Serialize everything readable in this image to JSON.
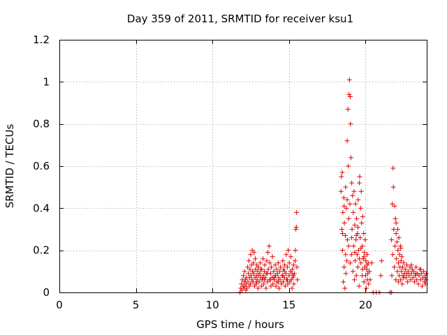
{
  "chart_data": {
    "type": "scatter",
    "title": "Day 359 of 2011, SRMTID for receiver ksu1",
    "xlabel": "GPS time / hours",
    "ylabel": "SRMTID / TECUs",
    "xlim": [
      0,
      24
    ],
    "ylim": [
      0,
      1.2
    ],
    "xticks": [
      0,
      5,
      10,
      15,
      20
    ],
    "xtick_labels": [
      "0",
      "5",
      "10",
      "15",
      "20"
    ],
    "yticks": [
      0,
      0.2,
      0.4,
      0.6,
      0.8,
      1,
      1.2
    ],
    "ytick_labels": [
      "0",
      "0.2",
      "0.4",
      "0.6",
      "0.8",
      "1",
      "1.2"
    ],
    "grid": true,
    "marker": "+",
    "color": "#e00000",
    "series": [
      {
        "name": "SRMTID",
        "points": [
          [
            11.8,
            0.0
          ],
          [
            11.85,
            0.02
          ],
          [
            11.9,
            0.04
          ],
          [
            11.92,
            0.01
          ],
          [
            11.95,
            0.06
          ],
          [
            12.0,
            0.03
          ],
          [
            12.02,
            0.08
          ],
          [
            12.05,
            0.02
          ],
          [
            12.08,
            0.05
          ],
          [
            12.1,
            0.1
          ],
          [
            12.12,
            0.03
          ],
          [
            12.15,
            0.06
          ],
          [
            12.18,
            0.01
          ],
          [
            12.2,
            0.04
          ],
          [
            12.22,
            0.07
          ],
          [
            12.25,
            0.02
          ],
          [
            12.3,
            0.12
          ],
          [
            12.32,
            0.05
          ],
          [
            12.35,
            0.09
          ],
          [
            12.38,
            0.15
          ],
          [
            12.4,
            0.03
          ],
          [
            12.42,
            0.07
          ],
          [
            12.45,
            0.11
          ],
          [
            12.48,
            0.04
          ],
          [
            12.5,
            0.18
          ],
          [
            12.52,
            0.08
          ],
          [
            12.55,
            0.13
          ],
          [
            12.58,
            0.06
          ],
          [
            12.6,
            0.2
          ],
          [
            12.62,
            0.1
          ],
          [
            12.65,
            0.05
          ],
          [
            12.68,
            0.14
          ],
          [
            12.7,
            0.09
          ],
          [
            12.72,
            0.19
          ],
          [
            12.75,
            0.03
          ],
          [
            12.78,
            0.07
          ],
          [
            12.8,
            0.16
          ],
          [
            12.82,
            0.11
          ],
          [
            12.85,
            0.04
          ],
          [
            12.88,
            0.08
          ],
          [
            12.9,
            0.13
          ],
          [
            12.92,
            0.06
          ],
          [
            12.95,
            0.1
          ],
          [
            12.98,
            0.02
          ],
          [
            13.0,
            0.12
          ],
          [
            13.05,
            0.05
          ],
          [
            13.1,
            0.09
          ],
          [
            13.12,
            0.14
          ],
          [
            13.15,
            0.07
          ],
          [
            13.2,
            0.03
          ],
          [
            13.22,
            0.11
          ],
          [
            13.25,
            0.06
          ],
          [
            13.3,
            0.16
          ],
          [
            13.32,
            0.08
          ],
          [
            13.35,
            0.04
          ],
          [
            13.4,
            0.1
          ],
          [
            13.42,
            0.13
          ],
          [
            13.45,
            0.07
          ],
          [
            13.5,
            0.02
          ],
          [
            13.52,
            0.09
          ],
          [
            13.55,
            0.15
          ],
          [
            13.6,
            0.05
          ],
          [
            13.62,
            0.19
          ],
          [
            13.65,
            0.11
          ],
          [
            13.7,
            0.22
          ],
          [
            13.72,
            0.06
          ],
          [
            13.75,
            0.14
          ],
          [
            13.8,
            0.09
          ],
          [
            13.82,
            0.03
          ],
          [
            13.85,
            0.12
          ],
          [
            13.9,
            0.07
          ],
          [
            13.92,
            0.17
          ],
          [
            13.95,
            0.04
          ],
          [
            14.0,
            0.1
          ],
          [
            14.05,
            0.06
          ],
          [
            14.1,
            0.13
          ],
          [
            14.12,
            0.08
          ],
          [
            14.15,
            0.03
          ],
          [
            14.2,
            0.11
          ],
          [
            14.22,
            0.05
          ],
          [
            14.25,
            0.09
          ],
          [
            14.3,
            0.14
          ],
          [
            14.32,
            0.07
          ],
          [
            14.35,
            0.02
          ],
          [
            14.4,
            0.1
          ],
          [
            14.42,
            0.06
          ],
          [
            14.45,
            0.12
          ],
          [
            14.5,
            0.04
          ],
          [
            14.55,
            0.08
          ],
          [
            14.6,
            0.15
          ],
          [
            14.62,
            0.05
          ],
          [
            14.65,
            0.11
          ],
          [
            14.7,
            0.07
          ],
          [
            14.72,
            0.13
          ],
          [
            14.75,
            0.03
          ],
          [
            14.8,
            0.09
          ],
          [
            14.82,
            0.18
          ],
          [
            14.85,
            0.06
          ],
          [
            14.9,
            0.12
          ],
          [
            14.92,
            0.04
          ],
          [
            14.95,
            0.2
          ],
          [
            15.0,
            0.08
          ],
          [
            15.02,
            0.14
          ],
          [
            15.05,
            0.05
          ],
          [
            15.1,
            0.1
          ],
          [
            15.12,
            0.17
          ],
          [
            15.15,
            0.06
          ],
          [
            15.2,
            0.02
          ],
          [
            15.22,
            0.11
          ],
          [
            15.25,
            0.07
          ],
          [
            15.3,
            0.13
          ],
          [
            15.32,
            0.04
          ],
          [
            15.35,
            0.09
          ],
          [
            15.4,
            0.15
          ],
          [
            15.42,
            0.2
          ],
          [
            15.45,
            0.3
          ],
          [
            15.48,
            0.31
          ],
          [
            15.5,
            0.38
          ],
          [
            15.52,
            0.12
          ],
          [
            15.55,
            0.06
          ],
          [
            13.0,
            0.08
          ],
          [
            13.15,
            0.11
          ],
          [
            13.4,
            0.06
          ],
          [
            13.6,
            0.09
          ],
          [
            14.0,
            0.07
          ],
          [
            14.3,
            0.05
          ],
          [
            14.6,
            0.08
          ],
          [
            14.9,
            0.06
          ],
          [
            15.2,
            0.09
          ],
          [
            12.9,
            0.05
          ],
          [
            13.3,
            0.07
          ],
          [
            14.1,
            0.08
          ],
          [
            14.7,
            0.1
          ],
          [
            15.3,
            0.08
          ],
          [
            13.8,
            0.06
          ],
          [
            18.4,
            0.48
          ],
          [
            18.42,
            0.55
          ],
          [
            18.45,
            0.3
          ],
          [
            18.48,
            0.57
          ],
          [
            18.5,
            0.2
          ],
          [
            18.52,
            0.38
          ],
          [
            18.55,
            0.05
          ],
          [
            18.58,
            0.45
          ],
          [
            18.6,
            0.12
          ],
          [
            18.62,
            0.33
          ],
          [
            18.65,
            0.02
          ],
          [
            18.68,
            0.27
          ],
          [
            18.7,
            0.5
          ],
          [
            18.72,
            0.09
          ],
          [
            18.75,
            0.4
          ],
          [
            18.78,
            0.15
          ],
          [
            18.8,
            0.72
          ],
          [
            18.82,
            0.25
          ],
          [
            18.85,
            0.87
          ],
          [
            18.88,
            0.6
          ],
          [
            18.9,
            0.35
          ],
          [
            18.92,
            0.94
          ],
          [
            18.95,
            1.01
          ],
          [
            18.98,
            0.42
          ],
          [
            19.0,
            0.93
          ],
          [
            19.02,
            0.8
          ],
          [
            19.05,
            0.64
          ],
          [
            19.08,
            0.18
          ],
          [
            19.1,
            0.52
          ],
          [
            19.12,
            0.3
          ],
          [
            19.15,
            0.46
          ],
          [
            19.18,
            0.1
          ],
          [
            19.2,
            0.38
          ],
          [
            19.22,
            0.22
          ],
          [
            19.25,
            0.48
          ],
          [
            19.28,
            0.06
          ],
          [
            19.3,
            0.32
          ],
          [
            19.32,
            0.15
          ],
          [
            19.35,
            0.42
          ],
          [
            19.38,
            0.25
          ],
          [
            19.4,
            0.08
          ],
          [
            19.42,
            0.35
          ],
          [
            19.45,
            0.18
          ],
          [
            19.48,
            0.28
          ],
          [
            19.5,
            0.12
          ],
          [
            19.52,
            0.44
          ],
          [
            19.55,
            0.2
          ],
          [
            19.58,
            0.03
          ],
          [
            19.6,
            0.52
          ],
          [
            19.62,
            0.55
          ],
          [
            19.65,
            0.26
          ],
          [
            19.68,
            0.4
          ],
          [
            19.7,
            0.14
          ],
          [
            19.72,
            0.48
          ],
          [
            19.75,
            0.33
          ],
          [
            19.78,
            0.08
          ],
          [
            19.8,
            0.22
          ],
          [
            19.82,
            0.36
          ],
          [
            19.85,
            0.16
          ],
          [
            19.88,
            0.28
          ],
          [
            19.9,
            0.05
          ],
          [
            19.92,
            0.19
          ],
          [
            19.95,
            0.12
          ],
          [
            19.98,
            0.25
          ],
          [
            20.0,
            0.08
          ],
          [
            20.02,
            0.15
          ],
          [
            20.05,
            0.02
          ],
          [
            20.08,
            0.11
          ],
          [
            20.1,
            0.18
          ],
          [
            20.12,
            0.06
          ],
          [
            20.15,
            0.09
          ],
          [
            20.18,
            0.14
          ],
          [
            20.2,
            0.04
          ],
          [
            20.25,
            0.1
          ],
          [
            20.3,
            0.06
          ],
          [
            18.5,
            0.28
          ],
          [
            18.7,
            0.18
          ],
          [
            18.9,
            0.22
          ],
          [
            19.1,
            0.26
          ],
          [
            19.3,
            0.19
          ],
          [
            19.5,
            0.31
          ],
          [
            19.7,
            0.21
          ],
          [
            19.9,
            0.17
          ],
          [
            20.1,
            0.13
          ],
          [
            18.6,
            0.41
          ],
          [
            19.0,
            0.14
          ],
          [
            19.4,
            0.27
          ],
          [
            19.8,
            0.11
          ],
          [
            18.8,
            0.44
          ],
          [
            19.6,
            0.16
          ],
          [
            20.4,
            0.14
          ],
          [
            20.5,
            0.0
          ],
          [
            20.7,
            0.0
          ],
          [
            20.9,
            0.0
          ],
          [
            21.0,
            0.08
          ],
          [
            21.05,
            0.15
          ],
          [
            21.6,
            0.0
          ],
          [
            21.7,
            0.0
          ],
          [
            21.7,
            0.25
          ],
          [
            21.72,
            0.08
          ],
          [
            21.75,
            0.42
          ],
          [
            21.78,
            0.18
          ],
          [
            21.8,
            0.59
          ],
          [
            21.82,
            0.5
          ],
          [
            21.85,
            0.3
          ],
          [
            21.88,
            0.12
          ],
          [
            21.9,
            0.41
          ],
          [
            21.92,
            0.22
          ],
          [
            21.95,
            0.35
          ],
          [
            21.98,
            0.06
          ],
          [
            22.0,
            0.28
          ],
          [
            22.02,
            0.16
          ],
          [
            22.05,
            0.24
          ],
          [
            22.08,
            0.1
          ],
          [
            22.1,
            0.3
          ],
          [
            22.12,
            0.2
          ],
          [
            22.15,
            0.14
          ],
          [
            22.18,
            0.26
          ],
          [
            22.2,
            0.08
          ],
          [
            22.22,
            0.18
          ],
          [
            22.25,
            0.12
          ],
          [
            22.28,
            0.22
          ],
          [
            22.3,
            0.06
          ],
          [
            22.32,
            0.15
          ],
          [
            22.35,
            0.1
          ],
          [
            22.38,
            0.17
          ],
          [
            22.4,
            0.04
          ],
          [
            22.42,
            0.12
          ],
          [
            22.45,
            0.08
          ],
          [
            22.5,
            0.14
          ],
          [
            22.55,
            0.09
          ],
          [
            22.6,
            0.11
          ],
          [
            22.65,
            0.07
          ],
          [
            22.7,
            0.13
          ],
          [
            22.75,
            0.05
          ],
          [
            22.8,
            0.1
          ],
          [
            22.85,
            0.08
          ],
          [
            22.9,
            0.12
          ],
          [
            22.95,
            0.06
          ],
          [
            23.0,
            0.09
          ],
          [
            23.05,
            0.11
          ],
          [
            23.1,
            0.07
          ],
          [
            23.15,
            0.1
          ],
          [
            23.2,
            0.05
          ],
          [
            23.25,
            0.08
          ],
          [
            23.3,
            0.12
          ],
          [
            23.35,
            0.06
          ],
          [
            23.4,
            0.09
          ],
          [
            23.45,
            0.04
          ],
          [
            23.5,
            0.08
          ],
          [
            23.55,
            0.11
          ],
          [
            23.6,
            0.06
          ],
          [
            23.65,
            0.09
          ],
          [
            23.7,
            0.03
          ],
          [
            23.75,
            0.07
          ],
          [
            23.8,
            0.1
          ],
          [
            23.85,
            0.05
          ],
          [
            23.9,
            0.08
          ],
          [
            23.92,
            0.04
          ],
          [
            23.95,
            0.06
          ],
          [
            23.98,
            0.09
          ],
          [
            22.0,
            0.33
          ],
          [
            22.15,
            0.05
          ],
          [
            22.3,
            0.21
          ],
          [
            22.5,
            0.07
          ],
          [
            22.7,
            0.09
          ],
          [
            23.0,
            0.13
          ],
          [
            23.3,
            0.09
          ],
          [
            23.6,
            0.11
          ],
          [
            23.9,
            0.07
          ]
        ]
      }
    ]
  }
}
